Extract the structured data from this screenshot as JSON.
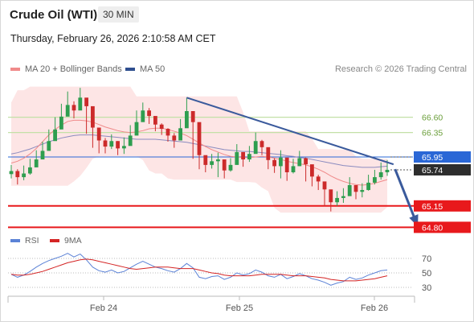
{
  "header": {
    "instrument": "Crude Oil (WTI)",
    "timeframe": "30 MIN",
    "datetime": "Thursday, February 26, 2026 2:10:58 AM CET",
    "credit": "Research © 2026 Trading Central"
  },
  "legend": {
    "ma20_label": "MA 20 + Bollinger Bands",
    "ma50_label": "MA 50",
    "rsi_label": "RSI",
    "rsi_ma_label": "9MA"
  },
  "colors": {
    "bull": "#2e9e4f",
    "bear": "#cc2a2a",
    "band": "#fde0e0",
    "ma20": "#f08a8a",
    "ma50": "#8b8bbf",
    "trend": "#3a5a9c",
    "support": "#e8191c",
    "current": "#2a67d6",
    "resistance": "#c3e0a7",
    "rsi": "#5b82d6",
    "rsi_ma": "#d42424"
  },
  "chart_data": [
    {
      "type": "candlestick",
      "x_ticks": [
        "Feb 24",
        "Feb 25",
        "Feb 26"
      ],
      "ylim": [
        64.7,
        67.2
      ],
      "levels": {
        "resistance": [
          66.6,
          66.35
        ],
        "current_marker": 65.95,
        "last_price": 65.74,
        "support": [
          65.15,
          64.8
        ]
      },
      "price_tags": [
        "66.60",
        "66.35",
        "65.95",
        "65.74",
        "65.15",
        "64.80"
      ],
      "trendline": {
        "from": [
          28,
          66.92
        ],
        "to": [
          61,
          65.83
        ]
      },
      "forecast_arrow": {
        "from": [
          61,
          65.75
        ],
        "to": [
          65,
          64.85
        ]
      },
      "close": [
        65.72,
        65.62,
        65.68,
        65.78,
        65.91,
        66.05,
        66.21,
        66.4,
        66.61,
        66.8,
        66.71,
        66.92,
        66.78,
        66.43,
        66.22,
        66.12,
        66.21,
        66.09,
        66.13,
        66.3,
        66.52,
        66.71,
        66.62,
        66.48,
        66.41,
        66.3,
        66.22,
        66.42,
        66.7,
        66.52,
        65.98,
        65.82,
        65.88,
        65.91,
        65.73,
        65.82,
        66.03,
        65.91,
        66.0,
        66.21,
        66.11,
        65.9,
        65.8,
        65.94,
        65.7,
        65.8,
        65.93,
        65.83,
        65.63,
        65.55,
        65.42,
        65.21,
        65.28,
        65.31,
        65.49,
        65.38,
        65.41,
        65.53,
        65.62,
        65.7,
        65.74
      ],
      "high": [
        65.82,
        65.75,
        65.81,
        65.92,
        66.06,
        66.2,
        66.4,
        66.6,
        66.82,
        67.02,
        66.86,
        67.08,
        66.9,
        66.55,
        66.31,
        66.26,
        66.32,
        66.21,
        66.27,
        66.47,
        66.71,
        66.84,
        66.75,
        66.6,
        66.5,
        66.42,
        66.34,
        66.57,
        66.92,
        66.66,
        66.1,
        65.95,
        66.0,
        66.02,
        65.85,
        65.93,
        66.16,
        66.02,
        66.13,
        66.35,
        66.23,
        66.02,
        65.93,
        66.06,
        65.82,
        65.92,
        66.05,
        65.94,
        65.75,
        65.66,
        65.54,
        65.33,
        65.39,
        65.44,
        65.62,
        65.49,
        65.52,
        65.66,
        65.74,
        65.86,
        65.9
      ],
      "low": [
        65.6,
        65.5,
        65.57,
        65.66,
        65.79,
        65.94,
        66.08,
        66.25,
        66.49,
        66.67,
        66.58,
        66.74,
        66.33,
        66.1,
        66.01,
        66.01,
        66.08,
        65.98,
        66.0,
        66.17,
        66.39,
        66.55,
        66.49,
        66.37,
        66.31,
        66.2,
        66.1,
        66.3,
        66.55,
        65.92,
        65.75,
        65.7,
        65.76,
        65.62,
        65.6,
        65.71,
        65.89,
        65.79,
        65.87,
        66.07,
        65.98,
        65.75,
        65.69,
        65.6,
        65.56,
        65.68,
        65.8,
        65.55,
        65.47,
        65.41,
        65.14,
        65.06,
        65.15,
        65.2,
        65.35,
        65.26,
        65.29,
        65.4,
        65.5,
        65.58,
        65.64
      ],
      "ma20_values": [
        65.85,
        65.88,
        65.93,
        66.0,
        66.09,
        66.2,
        66.31,
        66.4,
        66.47,
        66.53,
        66.55,
        66.55,
        66.54,
        66.52,
        66.48,
        66.44,
        66.41,
        66.38,
        66.36,
        66.35,
        66.36,
        66.38,
        66.41,
        66.42,
        66.42,
        66.4,
        66.37,
        66.34,
        66.3,
        66.24,
        66.18,
        66.12,
        66.07,
        66.03,
        65.99,
        65.96,
        65.95,
        65.94,
        65.94,
        65.95,
        65.96,
        65.95,
        65.93,
        65.91,
        65.88,
        65.86,
        65.84,
        65.82,
        65.79,
        65.75,
        65.7,
        65.64,
        65.59,
        65.55,
        65.52,
        65.5,
        65.49,
        65.5,
        65.52,
        65.55,
        65.58
      ],
      "ma50_values": [
        66.0,
        66.02,
        66.05,
        66.08,
        66.12,
        66.16,
        66.2,
        66.23,
        66.26,
        66.28,
        66.3,
        66.31,
        66.31,
        66.31,
        66.3,
        66.29,
        66.28,
        66.27,
        66.26,
        66.25,
        66.24,
        66.24,
        66.24,
        66.24,
        66.23,
        66.22,
        66.21,
        66.2,
        66.19,
        66.17,
        66.15,
        66.13,
        66.11,
        66.09,
        66.07,
        66.06,
        66.05,
        66.04,
        66.04,
        66.03,
        66.02,
        66.01,
        66.0,
        65.99,
        65.97,
        65.96,
        65.94,
        65.93,
        65.91,
        65.89,
        65.87,
        65.85,
        65.83,
        65.81,
        65.8,
        65.79,
        65.78,
        65.78,
        65.78,
        65.79,
        65.8
      ]
    },
    {
      "type": "line",
      "name": "RSI",
      "y_ticks": [
        70,
        50,
        30
      ],
      "ylim": [
        20,
        80
      ],
      "rsi": [
        48,
        44,
        47,
        52,
        58,
        63,
        67,
        70,
        73,
        77,
        72,
        76,
        68,
        58,
        53,
        51,
        54,
        50,
        52,
        57,
        62,
        66,
        62,
        58,
        56,
        53,
        51,
        56,
        63,
        57,
        44,
        42,
        45,
        46,
        41,
        44,
        50,
        47,
        49,
        54,
        51,
        46,
        44,
        48,
        42,
        45,
        49,
        46,
        42,
        40,
        37,
        33,
        36,
        38,
        44,
        41,
        43,
        47,
        50,
        53,
        54
      ],
      "rsi_ma": [
        48,
        47,
        47,
        48,
        50,
        52,
        55,
        58,
        61,
        64,
        66,
        68,
        69,
        68,
        66,
        64,
        62,
        60,
        58,
        56,
        55,
        56,
        57,
        58,
        58,
        58,
        57,
        56,
        56,
        56,
        54,
        52,
        50,
        49,
        47,
        46,
        46,
        46,
        46,
        47,
        48,
        48,
        48,
        48,
        47,
        46,
        46,
        46,
        45,
        44,
        43,
        41,
        40,
        39,
        39,
        39,
        40,
        41,
        42,
        44,
        46
      ]
    }
  ]
}
